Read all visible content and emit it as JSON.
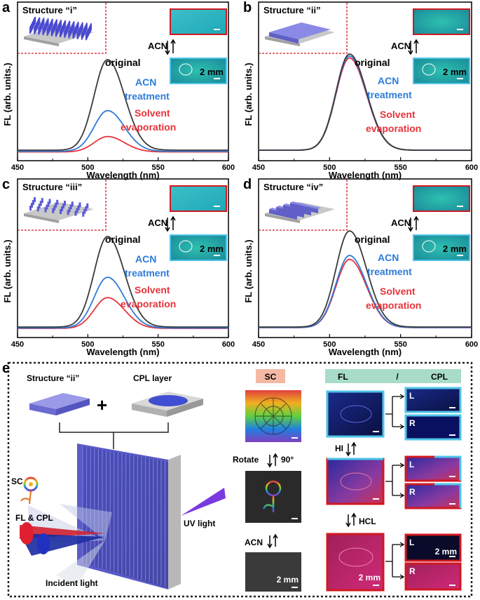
{
  "colors": {
    "original": "#3a3a3a",
    "acn": "#2e7bd8",
    "solvent": "#e8333a",
    "fl_border_blue": "#4fc3e8",
    "red_border": "#d01820"
  },
  "panels": [
    {
      "letter": "a",
      "structure": "Structure “i”",
      "ratio": [
        1,
        0.45,
        0.17
      ]
    },
    {
      "letter": "b",
      "structure": "Structure “ii”",
      "ratio": [
        1,
        0.98,
        0.96
      ]
    },
    {
      "letter": "c",
      "structure": "Structure “iii”",
      "ratio": [
        1,
        0.56,
        0.34
      ]
    },
    {
      "letter": "d",
      "structure": "Structure “iv”",
      "ratio": [
        1,
        0.75,
        0.71
      ]
    }
  ],
  "labels": {
    "ylabel": "FL (arb. units.)",
    "xlabel": "Wavelength (nm)",
    "acn": "ACN",
    "scale": "2 mm",
    "original": "original",
    "acn_treat_1": "ACN",
    "acn_treat_2": "treatment",
    "solvent_1": "Solvent",
    "solvent_2": "evaporation"
  },
  "chart_data": [
    {
      "type": "line",
      "panel": "a",
      "xlim": [
        450,
        600
      ],
      "xticks": [
        450,
        500,
        550,
        600
      ],
      "peak_nm": 514,
      "series": [
        {
          "name": "original",
          "peak": 1.0
        },
        {
          "name": "ACN treatment",
          "peak": 0.45
        },
        {
          "name": "Solvent evaporation",
          "peak": 0.17
        }
      ]
    },
    {
      "type": "line",
      "panel": "b",
      "xlim": [
        450,
        600
      ],
      "xticks": [
        450,
        500,
        550,
        600
      ],
      "peak_nm": 514,
      "series": [
        {
          "name": "original",
          "peak": 1.0
        },
        {
          "name": "ACN treatment",
          "peak": 0.98
        },
        {
          "name": "Solvent evaporation",
          "peak": 0.96
        }
      ]
    },
    {
      "type": "line",
      "panel": "c",
      "xlim": [
        450,
        600
      ],
      "xticks": [
        450,
        500,
        550,
        600
      ],
      "peak_nm": 514,
      "series": [
        {
          "name": "original",
          "peak": 1.0
        },
        {
          "name": "ACN treatment",
          "peak": 0.56
        },
        {
          "name": "Solvent evaporation",
          "peak": 0.34
        }
      ]
    },
    {
      "type": "line",
      "panel": "d",
      "xlim": [
        450,
        600
      ],
      "xticks": [
        450,
        500,
        550,
        600
      ],
      "peak_nm": 514,
      "series": [
        {
          "name": "original",
          "peak": 1.0
        },
        {
          "name": "ACN treatment",
          "peak": 0.75
        },
        {
          "name": "Solvent evaporation",
          "peak": 0.71
        }
      ]
    }
  ],
  "ticks": [
    "450",
    "500",
    "550",
    "600"
  ],
  "panel_e": {
    "letter": "e",
    "structure": "Structure “ii”",
    "cpl_layer": "CPL layer",
    "plus": "+",
    "sc": "SC",
    "fl_cpl": "FL & CPL",
    "uv": "UV light",
    "incident": "Incident light",
    "sc_header": "SC",
    "fl_header": "FL",
    "slash": "/",
    "cpl_header": "CPL",
    "rotate": "Rotate",
    "deg": "90°",
    "acn": "ACN",
    "hi": "HI",
    "hcl": "HCL",
    "l": "L",
    "r": "R",
    "scale": "2 mm"
  }
}
